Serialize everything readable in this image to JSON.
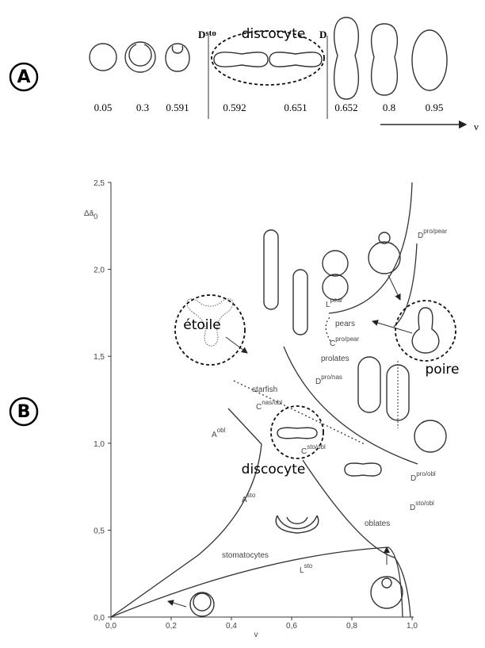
{
  "panel_a": {
    "label": "A",
    "header": {
      "d_sto": {
        "main": "D",
        "sup": "sto"
      },
      "discocyte": "discocyte",
      "d": "D"
    },
    "values": [
      "0.05",
      "0.3",
      "0.591",
      "0.592",
      "0.651",
      "0.652",
      "0.8",
      "0.95"
    ],
    "axis_label": "ν"
  },
  "panel_b": {
    "label": "B",
    "y_axis_label": {
      "main": "Δā",
      "sub": "0"
    },
    "x_axis_label": "v",
    "xlim": [
      0,
      1
    ],
    "ylim": [
      0,
      2.5
    ],
    "xticks": [
      {
        "value": 0,
        "label": "0,0"
      },
      {
        "value": 0.2,
        "label": "0,2"
      },
      {
        "value": 0.4,
        "label": "0,4"
      },
      {
        "value": 0.6,
        "label": "0,6"
      },
      {
        "value": 0.8,
        "label": "0,8"
      },
      {
        "value": 1,
        "label": "1,0"
      }
    ],
    "yticks": [
      {
        "value": 0,
        "label": "0,0"
      },
      {
        "value": 0.5,
        "label": "0,5"
      },
      {
        "value": 1,
        "label": "1,0"
      },
      {
        "value": 1.5,
        "label": "1,5"
      },
      {
        "value": 2,
        "label": "2,0"
      },
      {
        "value": 2.5,
        "label": "2,5"
      }
    ],
    "region_labels": [
      "starfish",
      "prolates",
      "pears",
      "oblates",
      "stomatocytes"
    ],
    "curve_labels": [
      {
        "main": "L",
        "sup": "pear"
      },
      {
        "main": "C",
        "sup": "pro/pear"
      },
      {
        "main": "D",
        "sup": "pro/pear"
      },
      {
        "main": "C",
        "sup": "nas/obl"
      },
      {
        "main": "D",
        "sup": "pro/nas"
      },
      {
        "main": "A",
        "sup": "obl"
      },
      {
        "main": "C",
        "sup": "sto/obl"
      },
      {
        "main": "D",
        "sup": "pro/obl"
      },
      {
        "main": "A",
        "sup": "sto"
      },
      {
        "main": "D",
        "sup": "sto/obl"
      },
      {
        "main": "L",
        "sup": "sto"
      }
    ],
    "annotations": [
      "étoile",
      "poire",
      "discocyte"
    ]
  }
}
